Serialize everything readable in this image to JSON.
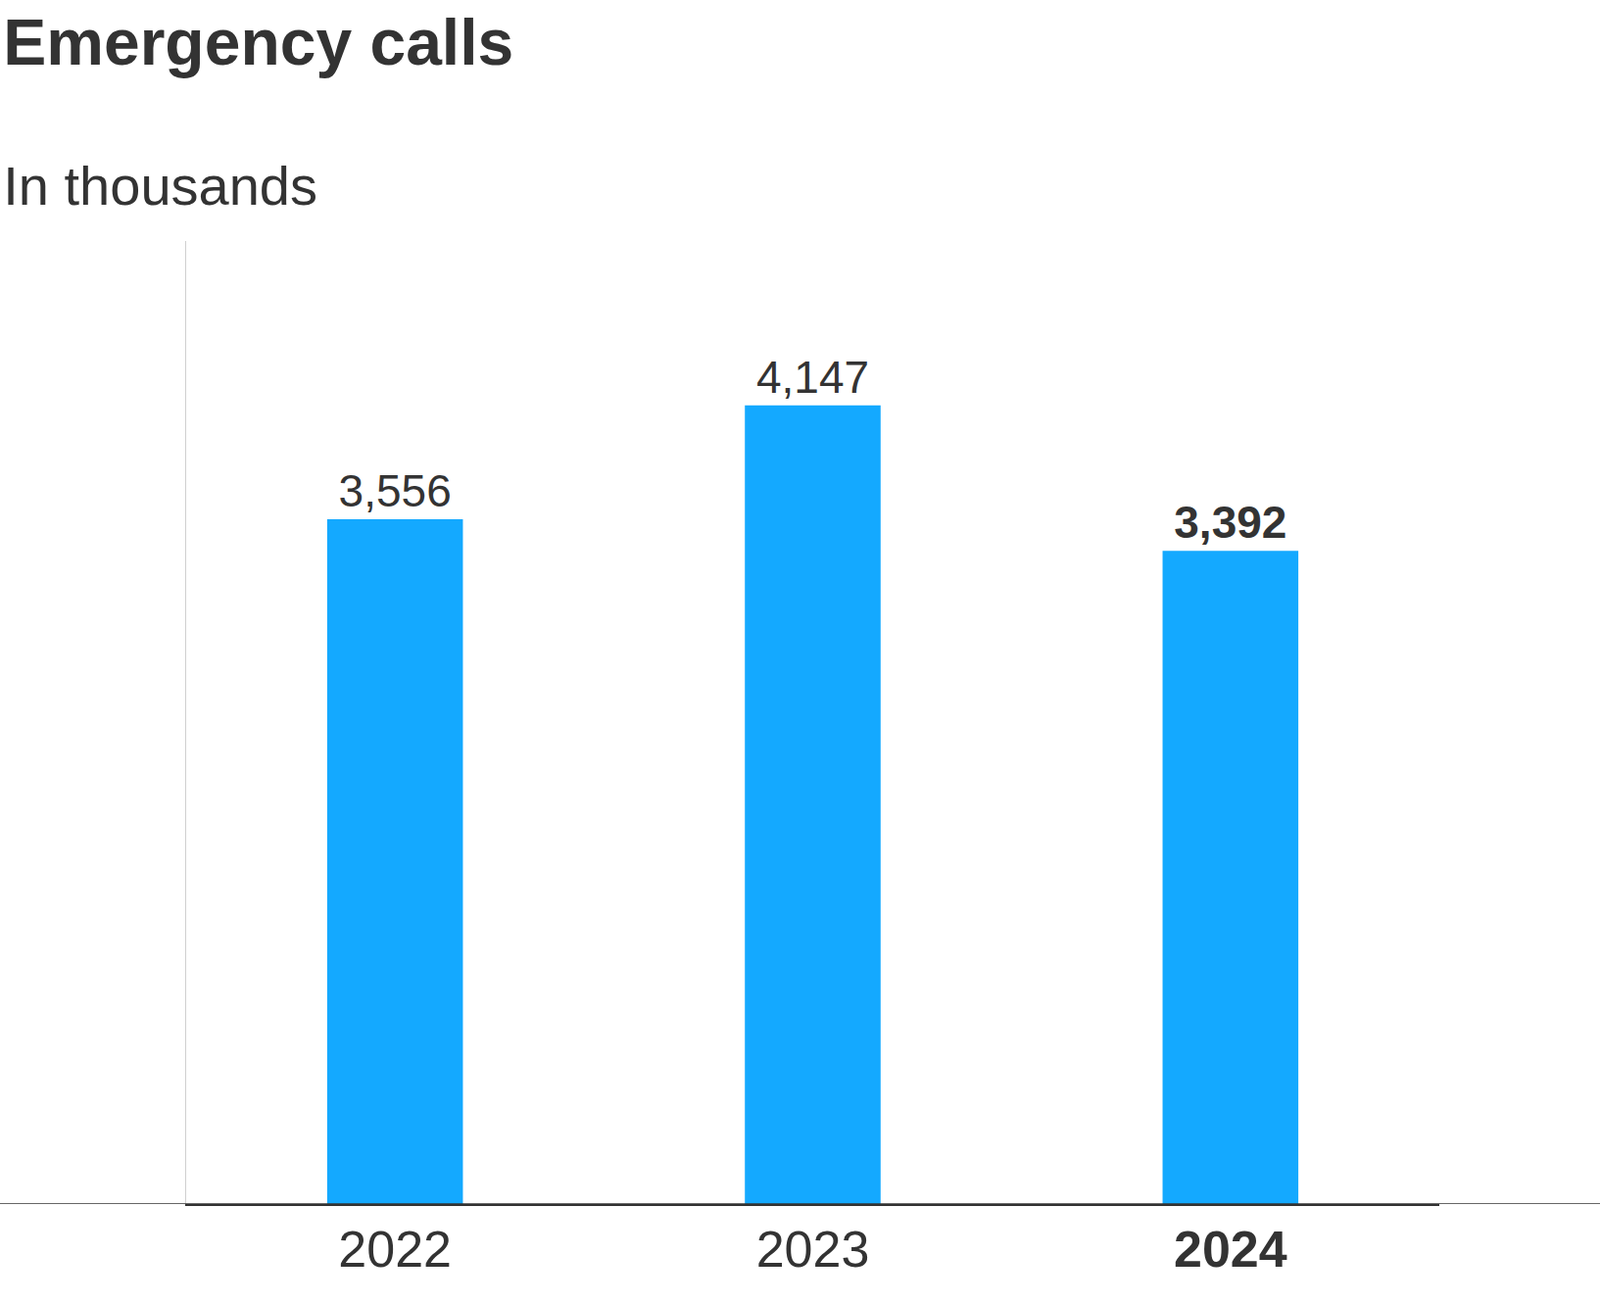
{
  "chart_data": {
    "type": "bar",
    "title": "Emergency calls",
    "subtitle": "In thousands",
    "categories": [
      "2022",
      "2023",
      "2024"
    ],
    "values": [
      3556,
      4147,
      3392
    ],
    "value_labels": [
      "3,556",
      "4,147",
      "3,392"
    ],
    "color": "#14a9ff",
    "ylim": [
      0,
      5000
    ],
    "yticks": [],
    "grid": false,
    "data_labels": true,
    "tick_labels": "x"
  }
}
